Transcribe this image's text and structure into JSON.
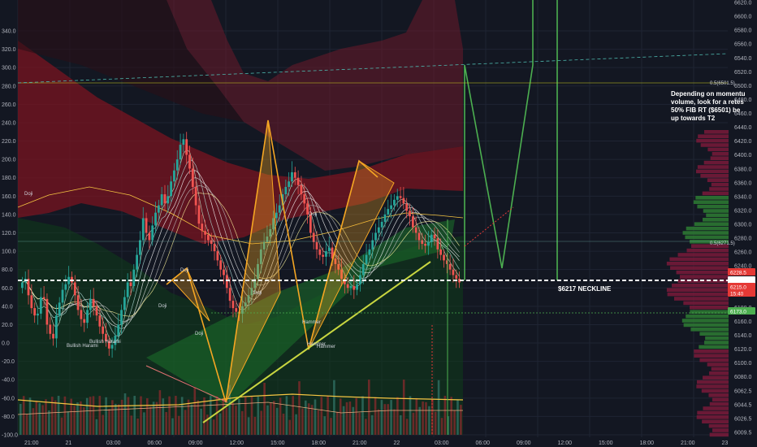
{
  "chart_data": {
    "type": "candlestick",
    "left_axis_ticks": [
      "340.0",
      "320.0",
      "300.0",
      "280.0",
      "260.0",
      "240.0",
      "220.0",
      "200.0",
      "180.0",
      "160.0",
      "140.0",
      "120.0",
      "100.0",
      "80.0",
      "60.0",
      "40.0",
      "20.0",
      "0.0",
      "-20.0",
      "-40.0",
      "-60.0",
      "-80.0",
      "-100.0"
    ],
    "right_axis_ticks": [
      "6620.0",
      "6600.0",
      "6580.0",
      "6560.0",
      "6540.0",
      "6520.0",
      "6500.0",
      "6480.0",
      "6460.0",
      "6440.0",
      "6420.0",
      "6400.0",
      "6380.0",
      "6360.0",
      "6340.0",
      "6320.0",
      "6300.0",
      "6280.0",
      "6260.0",
      "6240.0",
      "6220.0",
      "6200.0",
      "6180.0",
      "6160.0",
      "6140.0",
      "6120.0",
      "6100.0",
      "6080.0",
      "6062.5",
      "6044.5",
      "6026.5",
      "6009.5"
    ],
    "x_ticks": [
      "21:00",
      "21",
      "03:00",
      "06:00",
      "09:00",
      "12:00",
      "15:00",
      "18:00",
      "21:00",
      "22",
      "03:00",
      "06:00",
      "09:00",
      "12:00",
      "15:00",
      "18:00",
      "21:00",
      "23"
    ],
    "price_tags": [
      {
        "label": "6228.5",
        "color": "#e53935"
      },
      {
        "label": "6217.0",
        "color": "#ffffff"
      },
      {
        "label": "6215.0",
        "color": "#e53935"
      },
      {
        "label": "15:40",
        "color": "#e53935"
      },
      {
        "label": "6173.0",
        "color": "#4caf50"
      }
    ],
    "fib_labels": [
      "0.5(6501.5)",
      "0.5(6271.5)"
    ],
    "neckline_label": "$6217 NECKLINE",
    "annotation_lines": [
      "Depending on momentu",
      "volume, look for a retes",
      "50% FIB RT ($6501) be",
      "up towards T2"
    ],
    "pattern_labels": [
      "Doji",
      "Doji",
      "Doji",
      "Bullish Harami",
      "Doji",
      "Bullish Harami",
      "Doji",
      "Doji",
      "Hammer",
      "Hammer",
      "Hammer"
    ],
    "close_series": [
      66,
      70,
      52,
      38,
      30,
      32,
      50,
      48,
      20,
      10,
      5,
      30,
      44,
      58,
      64,
      72,
      66,
      52,
      36,
      26,
      22,
      36,
      48,
      40,
      30,
      18,
      10,
      2,
      -6,
      -2,
      8,
      20,
      36,
      50,
      66,
      62,
      80,
      96,
      112,
      136,
      120,
      112,
      128,
      142,
      150,
      162,
      152,
      160,
      176,
      188,
      200,
      216,
      222,
      205,
      190,
      170,
      150,
      130,
      122,
      118,
      112,
      108,
      100,
      90,
      80,
      74,
      60,
      46,
      38,
      34,
      32,
      40,
      44,
      52,
      60,
      70,
      86,
      102,
      110,
      116,
      124,
      136,
      142,
      150,
      162,
      170,
      176,
      186,
      180,
      172,
      162,
      152,
      140,
      120,
      110,
      102,
      96,
      94,
      100,
      104,
      92,
      86,
      80,
      70,
      64,
      60,
      62,
      58,
      64,
      74,
      86,
      96,
      102,
      112,
      120,
      126,
      132,
      140,
      146,
      150,
      156,
      160,
      158,
      152,
      144,
      138,
      126,
      120,
      112,
      108,
      106,
      110,
      118,
      114,
      102,
      96,
      90,
      86,
      80,
      74,
      70,
      66
    ]
  },
  "colors": {
    "background": "#131722",
    "bull": "#26a69a",
    "bear": "#ef5350",
    "neckline": "#ffffff",
    "pattern": "#f5a623",
    "projection": "#4caf50",
    "fib": "#c8c820",
    "cloud_red": "#7a1420",
    "cloud_green": "#1b5e20"
  }
}
